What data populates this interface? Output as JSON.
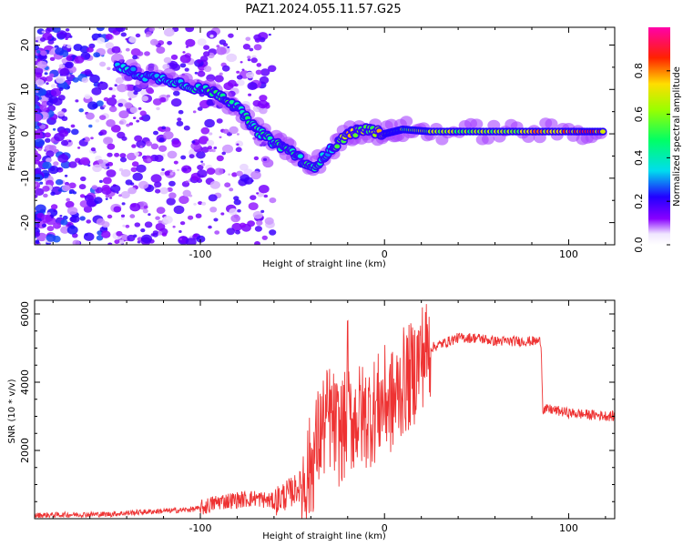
{
  "title": "PAZ1.2024.055.11.57.G25",
  "colors": {
    "snr_line": "#ee3333",
    "scatter_purple": "#6a00e6",
    "ridge_cyan": "#00ddee",
    "ridge_green": "#22ee55",
    "ridge_red": "#ee2222"
  },
  "chart_data": [
    {
      "type": "heatmap",
      "xlabel": "Height of straight line (km)",
      "ylabel": "Frequency (Hz)",
      "xlim": [
        -190,
        125
      ],
      "ylim": [
        -25,
        24
      ],
      "xticks": [
        {
          "value": -100,
          "label": "-100"
        },
        {
          "value": 0,
          "label": "0"
        },
        {
          "value": 100,
          "label": "100"
        }
      ],
      "yticks": [
        {
          "value": -20,
          "label": "-20"
        },
        {
          "value": -10,
          "label": "-10"
        },
        {
          "value": 0,
          "label": "0"
        },
        {
          "value": 10,
          "label": "10"
        },
        {
          "value": 20,
          "label": "20"
        }
      ],
      "colorbar": {
        "label": "Normalized spectral amplitude",
        "range": [
          0,
          1
        ],
        "ticks": [
          {
            "value": 0.0,
            "label": "0.0"
          },
          {
            "value": 0.2,
            "label": "0.2"
          },
          {
            "value": 0.4,
            "label": "0.4"
          },
          {
            "value": 0.6,
            "label": "0.6"
          },
          {
            "value": 0.8,
            "label": "0.8"
          }
        ],
        "colormap": "hsv"
      },
      "ridge": [
        {
          "x": -145,
          "y": 15,
          "amp": 0.35
        },
        {
          "x": -130,
          "y": 13,
          "amp": 0.3
        },
        {
          "x": -115,
          "y": 12,
          "amp": 0.35
        },
        {
          "x": -100,
          "y": 10,
          "amp": 0.45
        },
        {
          "x": -90,
          "y": 9,
          "amp": 0.5
        },
        {
          "x": -80,
          "y": 6,
          "amp": 0.45
        },
        {
          "x": -70,
          "y": 1,
          "amp": 0.45
        },
        {
          "x": -60,
          "y": -2,
          "amp": 0.45
        },
        {
          "x": -50,
          "y": -4,
          "amp": 0.45
        },
        {
          "x": -40,
          "y": -8,
          "amp": 0.45
        },
        {
          "x": -30,
          "y": -4,
          "amp": 0.35
        },
        {
          "x": -20,
          "y": 0,
          "amp": 0.7
        },
        {
          "x": -10,
          "y": 1,
          "amp": 0.6
        },
        {
          "x": 0,
          "y": 0,
          "amp": 0.7
        },
        {
          "x": 10,
          "y": 1,
          "amp": 0.55
        },
        {
          "x": 25,
          "y": 0.5,
          "amp": 0.65
        },
        {
          "x": 50,
          "y": 0.5,
          "amp": 0.6
        },
        {
          "x": 75,
          "y": 0.5,
          "amp": 0.65
        },
        {
          "x": 100,
          "y": 0.5,
          "amp": 0.85
        },
        {
          "x": 120,
          "y": 0.5,
          "amp": 0.8
        }
      ]
    },
    {
      "type": "line",
      "xlabel": "Height of straight line (km)",
      "ylabel": "SNR (10 * v/v)",
      "xlim": [
        -190,
        125
      ],
      "ylim": [
        0,
        6400
      ],
      "xticks": [
        {
          "value": -100,
          "label": "-100"
        },
        {
          "value": 0,
          "label": "0"
        },
        {
          "value": 100,
          "label": "100"
        }
      ],
      "yticks": [
        {
          "value": 2000,
          "label": "2000"
        },
        {
          "value": 4000,
          "label": "4000"
        },
        {
          "value": 6000,
          "label": "6000"
        }
      ],
      "series": [
        {
          "x": [
            -190,
            -170,
            -150,
            -130,
            -110,
            -100,
            -90,
            -80,
            -70,
            -60,
            -50,
            -45,
            -40,
            -35,
            -30,
            -25,
            -20,
            -15,
            -10,
            -5,
            0,
            5,
            10,
            15,
            20,
            25,
            30,
            35,
            40,
            50,
            60,
            70,
            80,
            85,
            86,
            90,
            100,
            110,
            125
          ],
          "y": [
            100,
            120,
            130,
            200,
            250,
            300,
            500,
            550,
            600,
            500,
            800,
            1000,
            1500,
            2500,
            3000,
            2500,
            2800,
            3000,
            3000,
            3200,
            3500,
            3400,
            4000,
            4200,
            4800,
            5000,
            5100,
            5200,
            5300,
            5300,
            5200,
            5200,
            5200,
            5200,
            3200,
            3200,
            3100,
            3050,
            3000
          ]
        }
      ]
    }
  ]
}
